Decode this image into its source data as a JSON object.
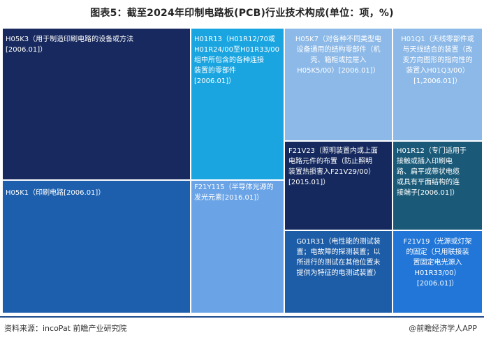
{
  "title": "图表5：截至2024年印制电路板(PCB)行业技术构成(单位：项，%)",
  "footer": {
    "source": "资料来源：incoPat 前瞻产业研究院",
    "brand": "@前瞻经济学人APP"
  },
  "chart_data": {
    "type": "treemap",
    "title": "图表5：截至2024年印制电路板(PCB)行业技术构成(单位：项，%)",
    "items": [
      {
        "label": "H05K3（用于制造印刷电路的设备或方法[2006.01]）",
        "color": "#17295e"
      },
      {
        "label": "H05K1（印刷电路[2006.01]）",
        "color": "#1d5fad"
      },
      {
        "label": "H01R13（H01R12/70或H01R24/00至H01R33/00组中所包含的各种连接装置的零部件[2006.01]）",
        "color": "#1aa5e0"
      },
      {
        "label": "F21Y115（半导体光源的发光元素[2016.01]）",
        "color": "#6aa3e6"
      },
      {
        "label": "H05K7（对各种不同类型电设备通用的结构零部件（机壳、箱柜或拉屉入H05K5/00）[2006.01]）",
        "color": "#8cb9e8"
      },
      {
        "label": "H01Q1（天线零部件或与天线结合的装置（改变方向图形的指向性的装置入H01Q3/00）[1,2006.01]）",
        "color": "#8cb9e8"
      },
      {
        "label": "F21V23（照明装置内或上面电路元件的布置（防止照明装置热损害入F21V29/00）[2015.01]）",
        "color": "#15295e"
      },
      {
        "label": "H01R12（专门适用于接触或插入印刷电路、扁平或带状电缆或具有平面结构的连接端子[2006.01]）",
        "color": "#1a5a78"
      },
      {
        "label": "G01R31（电性能的测试装置；电故障的探测装置；以所进行的测试在其他位置未提供为特征的电测试装置）",
        "color": "#1d5ca6"
      },
      {
        "label": "F21V19（光源或灯架的固定（只用联接装置固定电光源入H01R33/00）[2006.01]）",
        "color": "#2176d8"
      }
    ]
  },
  "cells": [
    {
      "name": "tile-h05k3",
      "lines": [
        "H05K3（用于制造印刷电路的设备或方法",
        "[2006.01]）"
      ]
    },
    {
      "name": "tile-h05k1",
      "lines": [
        "H05K1（印刷电路[2006.01]）"
      ]
    },
    {
      "name": "tile-h01r13",
      "lines": [
        "H01R13（H01R12/70或",
        "H01R24/00至H01R33/00",
        "组中所包含的各种连接",
        "装置的零部件",
        "[2006.01]）"
      ]
    },
    {
      "name": "tile-f21y115",
      "lines": [
        "F21Y115（半导体光源的",
        "发光元素[2016.01]）"
      ]
    },
    {
      "name": "tile-h05k7",
      "lines": [
        "H05K7（对各种不同类型电",
        "设备通用的结构零部件（机",
        "壳、箱柜或拉屉入",
        "H05K5/00）[2006.01]）"
      ]
    },
    {
      "name": "tile-h01q1",
      "lines": [
        "H01Q1（天线零部件或",
        "与天线结合的装置（改",
        "变方向图形的指向性的",
        "装置入H01Q3/00）",
        "[1,2006.01]）"
      ]
    },
    {
      "name": "tile-f21v23",
      "lines": [
        "F21V23（照明装置内或上面",
        "电路元件的布置（防止照明",
        "装置热损害入F21V29/00）",
        "[2015.01]）"
      ]
    },
    {
      "name": "tile-h01r12",
      "lines": [
        "H01R12（专门适用于",
        "接触或插入印刷电",
        "路、扁平或带状电缆",
        "或具有平面结构的连",
        "接端子[2006.01]）"
      ]
    },
    {
      "name": "tile-g01r31",
      "lines": [
        "G01R31（电性能的测试装",
        "置；电故障的探测装置；以",
        "所进行的测试在其他位置未",
        "提供为特征的电测试装置）"
      ]
    },
    {
      "name": "tile-f21v19",
      "lines": [
        "F21V19（光源或灯架",
        "的固定（只用联接装",
        "置固定电光源入",
        "H01R33/00）",
        "[2006.01]）"
      ]
    }
  ]
}
